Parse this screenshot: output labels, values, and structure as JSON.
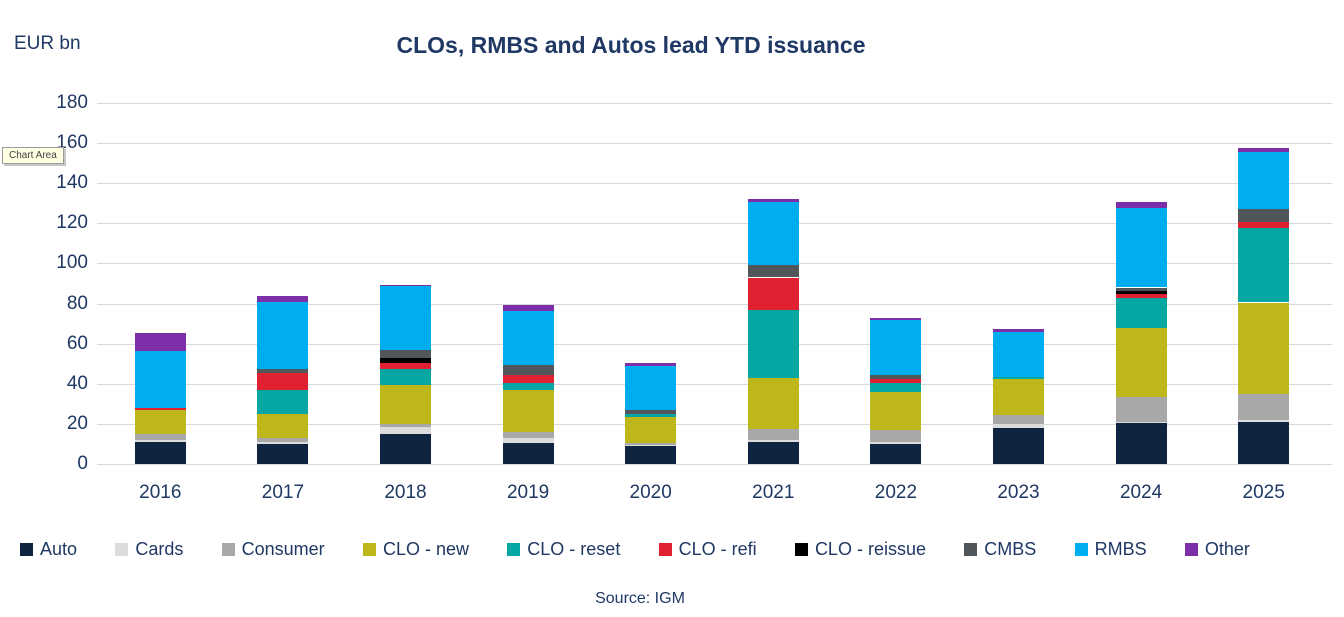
{
  "title": "CLOs, RMBS and Autos lead YTD issuance",
  "units_label": "EUR bn",
  "source": "Source: IGM",
  "tooltip": "Chart Area",
  "colors": {
    "text": "#1F3864",
    "gridline": "#D9D9D9",
    "background": "#FFFFFF",
    "tooltip_background": "#FFFFE1"
  },
  "chart_data": {
    "type": "bar",
    "stacked": true,
    "title": "CLOs, RMBS and Autos lead YTD issuance",
    "ylabel": "EUR bn",
    "xlabel": "",
    "ylim": [
      0,
      180
    ],
    "ytick_interval": 20,
    "grid": true,
    "legend_position": "bottom",
    "categories": [
      "2016",
      "2017",
      "2018",
      "2019",
      "2020",
      "2021",
      "2022",
      "2023",
      "2024",
      "2025"
    ],
    "series": [
      {
        "name": "Auto",
        "color": "#0E2440",
        "values": [
          11,
          10,
          15,
          10.5,
          9,
          11,
          10,
          18,
          20.5,
          21
        ]
      },
      {
        "name": "Cards",
        "color": "#DCDCDC",
        "values": [
          1,
          1,
          3.5,
          2.5,
          0.5,
          1,
          1,
          2,
          0.5,
          1
        ]
      },
      {
        "name": "Consumer",
        "color": "#A8A8A8",
        "values": [
          3,
          2,
          1.5,
          3,
          1,
          5.5,
          6,
          4.5,
          12.5,
          13
        ]
      },
      {
        "name": "CLO - new",
        "color": "#BEB71B",
        "values": [
          12,
          12,
          19.5,
          21,
          13,
          25.5,
          19,
          18,
          34.5,
          45.5
        ]
      },
      {
        "name": "CLO - reset",
        "color": "#06A7A2",
        "values": [
          0,
          12,
          8,
          3.5,
          1.5,
          34,
          4.5,
          1,
          15,
          37
        ]
      },
      {
        "name": "CLO - refi",
        "color": "#E02131",
        "values": [
          1,
          8.5,
          3,
          4,
          0,
          16,
          2,
          0,
          2,
          3
        ]
      },
      {
        "name": "CLO - reissue",
        "color": "#000000",
        "values": [
          0,
          0,
          2.5,
          0,
          0,
          0,
          0,
          0,
          1.5,
          0
        ]
      },
      {
        "name": "CMBS",
        "color": "#51565B",
        "values": [
          0,
          2,
          4,
          5,
          2,
          6,
          2,
          0,
          1.5,
          6.5
        ]
      },
      {
        "name": "RMBS",
        "color": "#00AEEF",
        "values": [
          28.5,
          33.5,
          32,
          27,
          22,
          31.5,
          27.5,
          22.5,
          39.5,
          28.5
        ]
      },
      {
        "name": "Other",
        "color": "#7C2FA8",
        "values": [
          9,
          3,
          0.5,
          3,
          1.5,
          1.5,
          1,
          1.5,
          3,
          2
        ]
      }
    ]
  }
}
